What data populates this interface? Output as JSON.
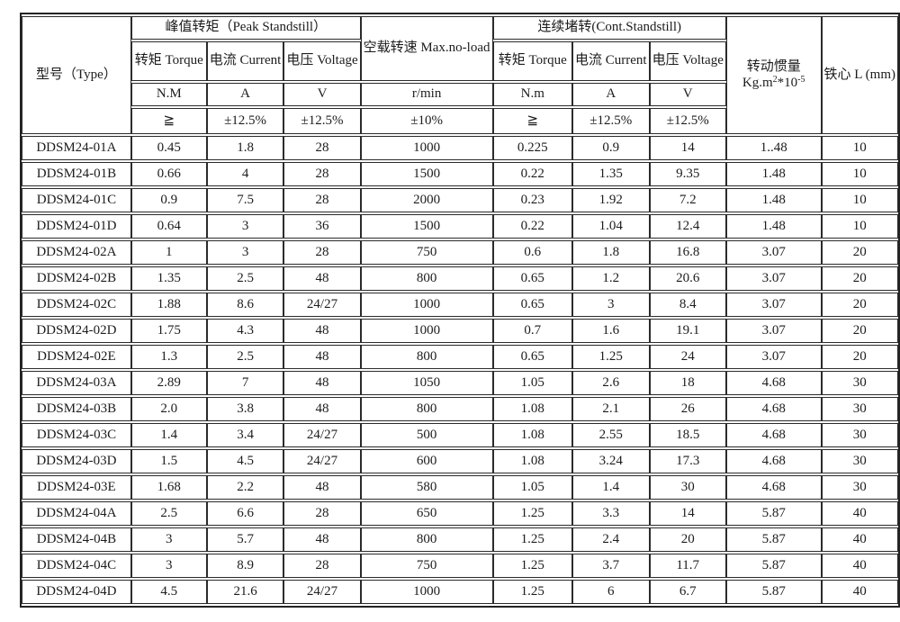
{
  "table": {
    "header": {
      "type_label": "型号（Type）",
      "peak_group": "峰值转矩（Peak Standstill）",
      "noload_label": "空载转速\nMax.no-load",
      "cont_group": "连续堵转(Cont.Standstill)",
      "inertia_line1": "转动惯量",
      "inertia_base1": "Kg.m",
      "inertia_sup1": "2",
      "inertia_base2": "*10",
      "inertia_sup2": "-5",
      "core_label": "铁心 L\n(mm)",
      "sub_torque": "转矩\nTorque",
      "sub_current": "电流\nCurrent",
      "sub_voltage": "电压\nVoltage",
      "unit_peak_torque": "N.M",
      "unit_current": "A",
      "unit_voltage": "V",
      "unit_speed": "r/min",
      "unit_cont_torque": "N.m",
      "tol_gte": "≧",
      "tol_pct125": "±12.5%",
      "tol_pct10": "±10%"
    },
    "rows": [
      [
        "DDSM24-01A",
        "0.45",
        "1.8",
        "28",
        "1000",
        "0.225",
        "0.9",
        "14",
        "1..48",
        "10"
      ],
      [
        "DDSM24-01B",
        "0.66",
        "4",
        "28",
        "1500",
        "0.22",
        "1.35",
        "9.35",
        "1.48",
        "10"
      ],
      [
        "DDSM24-01C",
        "0.9",
        "7.5",
        "28",
        "2000",
        "0.23",
        "1.92",
        "7.2",
        "1.48",
        "10"
      ],
      [
        "DDSM24-01D",
        "0.64",
        "3",
        "36",
        "1500",
        "0.22",
        "1.04",
        "12.4",
        "1.48",
        "10"
      ],
      [
        "DDSM24-02A",
        "1",
        "3",
        "28",
        "750",
        "0.6",
        "1.8",
        "16.8",
        "3.07",
        "20"
      ],
      [
        "DDSM24-02B",
        "1.35",
        "2.5",
        "48",
        "800",
        "0.65",
        "1.2",
        "20.6",
        "3.07",
        "20"
      ],
      [
        "DDSM24-02C",
        "1.88",
        "8.6",
        "24/27",
        "1000",
        "0.65",
        "3",
        "8.4",
        "3.07",
        "20"
      ],
      [
        "DDSM24-02D",
        "1.75",
        "4.3",
        "48",
        "1000",
        "0.7",
        "1.6",
        "19.1",
        "3.07",
        "20"
      ],
      [
        "DDSM24-02E",
        "1.3",
        "2.5",
        "48",
        "800",
        "0.65",
        "1.25",
        "24",
        "3.07",
        "20"
      ],
      [
        "DDSM24-03A",
        "2.89",
        "7",
        "48",
        "1050",
        "1.05",
        "2.6",
        "18",
        "4.68",
        "30"
      ],
      [
        "DDSM24-03B",
        "2.0",
        "3.8",
        "48",
        "800",
        "1.08",
        "2.1",
        "26",
        "4.68",
        "30"
      ],
      [
        "DDSM24-03C",
        "1.4",
        "3.4",
        "24/27",
        "500",
        "1.08",
        "2.55",
        "18.5",
        "4.68",
        "30"
      ],
      [
        "DDSM24-03D",
        "1.5",
        "4.5",
        "24/27",
        "600",
        "1.08",
        "3.24",
        "17.3",
        "4.68",
        "30"
      ],
      [
        "DDSM24-03E",
        "1.68",
        "2.2",
        "48",
        "580",
        "1.05",
        "1.4",
        "30",
        "4.68",
        "30"
      ],
      [
        "DDSM24-04A",
        "2.5",
        "6.6",
        "28",
        "650",
        "1.25",
        "3.3",
        "14",
        "5.87",
        "40"
      ],
      [
        "DDSM24-04B",
        "3",
        "5.7",
        "48",
        "800",
        "1.25",
        "2.4",
        "20",
        "5.87",
        "40"
      ],
      [
        "DDSM24-04C",
        "3",
        "8.9",
        "28",
        "750",
        "1.25",
        "3.7",
        "11.7",
        "5.87",
        "40"
      ],
      [
        "DDSM24-04D",
        "4.5",
        "21.6",
        "24/27",
        "1000",
        "1.25",
        "6",
        "6.7",
        "5.87",
        "40"
      ]
    ]
  }
}
